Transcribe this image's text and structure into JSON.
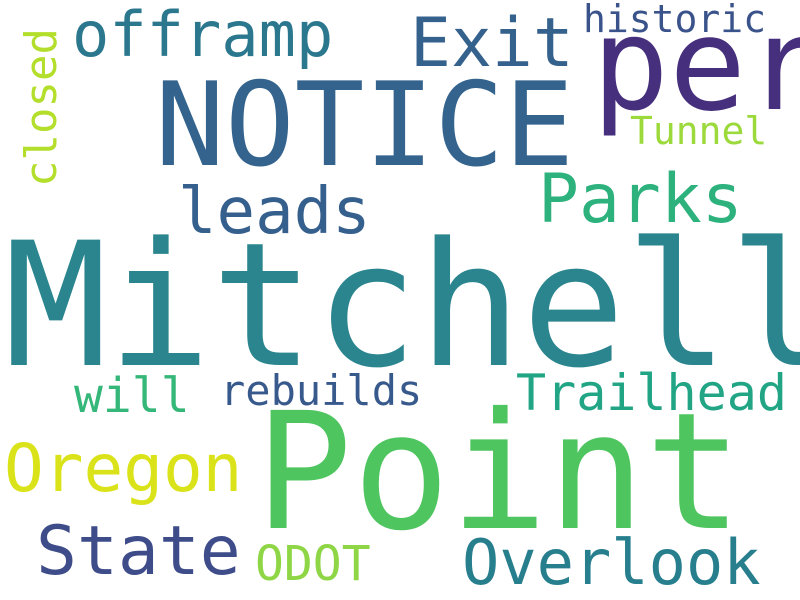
{
  "words": [
    {
      "id": "mitchell",
      "text": "Mitchell",
      "color": "#2a858e"
    },
    {
      "id": "point",
      "text": "Point",
      "color": "#4fc560"
    },
    {
      "id": "notice",
      "text": "NOTICE",
      "color": "#34648d"
    },
    {
      "id": "per",
      "text": "per",
      "color": "#462f7c"
    },
    {
      "id": "offramp",
      "text": "offramp",
      "color": "#2b788e"
    },
    {
      "id": "exit",
      "text": "Exit",
      "color": "#35618d"
    },
    {
      "id": "historic",
      "text": "historic",
      "color": "#3a538b"
    },
    {
      "id": "tunnel",
      "text": "Tunnel",
      "color": "#9cd93b"
    },
    {
      "id": "closed",
      "text": "closed",
      "color": "#b4de2c"
    },
    {
      "id": "leads",
      "text": "leads",
      "color": "#355f8d"
    },
    {
      "id": "parks",
      "text": "Parks",
      "color": "#2db27d"
    },
    {
      "id": "will",
      "text": "will",
      "color": "#35b779"
    },
    {
      "id": "rebuilds",
      "text": "rebuilds",
      "color": "#38598c"
    },
    {
      "id": "trailhead",
      "text": "Trailhead",
      "color": "#21a585"
    },
    {
      "id": "oregon",
      "text": "Oregon",
      "color": "#dae319"
    },
    {
      "id": "state",
      "text": "State",
      "color": "#3e4c8a"
    },
    {
      "id": "odot",
      "text": "ODOT",
      "color": "#8ed645"
    },
    {
      "id": "overlook",
      "text": "Overlook",
      "color": "#277f8e"
    }
  ]
}
